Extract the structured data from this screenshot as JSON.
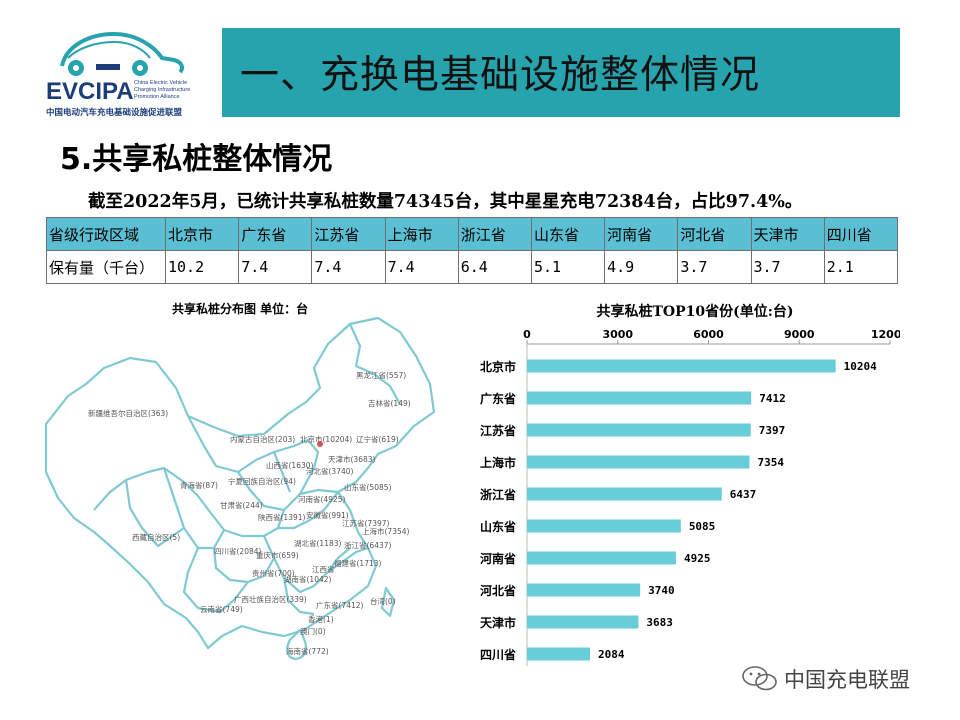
{
  "logo": {
    "brand": "EVCIPA",
    "subtitle": "China Electric Vehicle Charging Infrastructure Promotion Alliance",
    "cn_name": "中国电动汽车充电基础设施促进联盟"
  },
  "header": {
    "title": "一、充换电基础设施整体情况"
  },
  "section": {
    "title": "5.共享私桩整体情况"
  },
  "summary": "截至2022年5月，已统计共享私桩数量74345台，其中星星充电72384台，占比97.4%。",
  "table": {
    "row_label_1": "省级行政区域",
    "row_label_2": "保有量（千台）",
    "regions": [
      "北京市",
      "广东省",
      "江苏省",
      "上海市",
      "浙江省",
      "山东省",
      "河南省",
      "河北省",
      "天津市",
      "四川省"
    ],
    "values": [
      "10.2",
      "7.4",
      "7.4",
      "7.4",
      "6.4",
      "5.1",
      "4.9",
      "3.7",
      "3.7",
      "2.1"
    ]
  },
  "map": {
    "title": "共享私桩分布图  单位：台",
    "labels": [
      "黑龙江省(557)",
      "吉林省(149)",
      "新疆维吾尔自治区(363)",
      "内蒙古自治区(203)",
      "北京市(10204)",
      "辽宁省(619)",
      "天津市(3683)",
      "山西省(1630)",
      "河北省(3740)",
      "宁夏回族自治区(94)",
      "山东省(5085)",
      "青海省(87)",
      "甘肃省(244)",
      "河南省(4925)",
      "陕西省(1391)",
      "安徽省(991)",
      "江苏省(7397)",
      "上海市(7354)",
      "西藏自治区(5)",
      "四川省(2084)",
      "湖北省(1183)",
      "浙江省(6437)",
      "重庆市(659)",
      "贵州省(700)",
      "湖南省(1042)",
      "江西省",
      "福建省(1713)",
      "广西壮族自治区(339)",
      "云南省(749)",
      "广东省(7412)",
      "台湾(0)",
      "香港(1)",
      "澳门(0)",
      "海南省(772)"
    ]
  },
  "chart_data": {
    "type": "bar",
    "orientation": "horizontal",
    "title": "共享私桩TOP10省份(单位:台)",
    "categories": [
      "北京市",
      "广东省",
      "江苏省",
      "上海市",
      "浙江省",
      "山东省",
      "河南省",
      "河北省",
      "天津市",
      "四川省"
    ],
    "values": [
      10204,
      7412,
      7397,
      7354,
      6437,
      5085,
      4925,
      3740,
      3683,
      2084
    ],
    "xlim": [
      0,
      12000
    ],
    "xticks": [
      "0",
      "3000",
      "6000",
      "9000",
      "12000"
    ],
    "bar_color": "#67cdd9",
    "grid": false,
    "legend": "none"
  },
  "watermark": "中国充电联盟",
  "colors": {
    "header_band": "#27a3ad",
    "table_header": "#5bbfd3",
    "map_stroke": "#7ec9d4"
  }
}
